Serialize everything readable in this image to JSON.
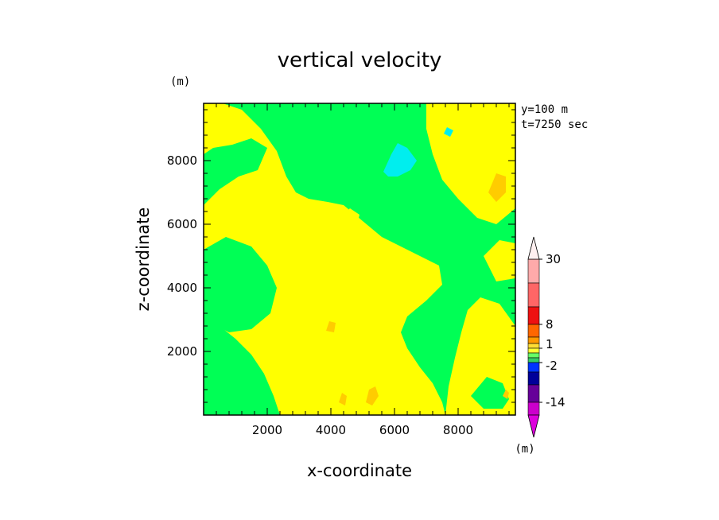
{
  "chart_data": {
    "type": "heatmap",
    "title": "vertical velocity",
    "xlabel": "x-coordinate",
    "ylabel": "z-coordinate",
    "x_unit": "(m)",
    "y_unit": "(m)",
    "info": [
      "y=100 m",
      "t=7250 sec"
    ],
    "xlim": [
      0,
      9800
    ],
    "ylim": [
      0,
      9800
    ],
    "xticks": [
      2000,
      4000,
      6000,
      8000
    ],
    "yticks": [
      2000,
      4000,
      6000,
      8000
    ],
    "xtick_labels": [
      "2000",
      "4000",
      "6000",
      "8000"
    ],
    "ytick_labels": [
      "2000",
      "4000",
      "6000",
      "8000"
    ],
    "grid": false,
    "colorbar": {
      "labels": [
        {
          "text": "30",
          "at": 30
        },
        {
          "text": "8",
          "at": 8
        },
        {
          "text": "1",
          "at": 1
        },
        {
          "text": "-2",
          "at": -2
        },
        {
          "text": "-14",
          "at": -14
        }
      ],
      "bins": [
        {
          "color": "#ffaaaa",
          "from": 22,
          "to": 30
        },
        {
          "color": "#ff6666",
          "from": 14,
          "to": 22
        },
        {
          "color": "#ee1111",
          "from": 8,
          "to": 14
        },
        {
          "color": "#ff6600",
          "from": 4,
          "to": 8
        },
        {
          "color": "#ff9900",
          "from": 2,
          "to": 4
        },
        {
          "color": "#ffdd33",
          "from": 1,
          "to": 2
        },
        {
          "color": "#ffff33",
          "from": 0,
          "to": 1
        },
        {
          "color": "#66ff66",
          "from": -1,
          "to": 0
        },
        {
          "color": "#33cc66",
          "from": -2,
          "to": -1
        },
        {
          "color": "#0033ff",
          "from": -5,
          "to": -2
        },
        {
          "color": "#000099",
          "from": -8,
          "to": -5
        },
        {
          "color": "#660099",
          "from": -14,
          "to": -8
        },
        {
          "color": "#cc00cc",
          "from": -20,
          "to": -14
        }
      ],
      "over_color": "#fff0f0",
      "under_color": "#dd00dd"
    },
    "field": {
      "background_color": "#00ff55",
      "regions": [
        {
          "level": "0 to 1",
          "color": "#ffff00",
          "points": [
            [
              0,
              9800
            ],
            [
              600,
              9800
            ],
            [
              1200,
              9600
            ],
            [
              1800,
              9000
            ],
            [
              2300,
              8300
            ],
            [
              2600,
              7500
            ],
            [
              2900,
              7000
            ],
            [
              3300,
              6800
            ],
            [
              3900,
              6700
            ],
            [
              4400,
              6600
            ],
            [
              5000,
              6100
            ],
            [
              5600,
              5600
            ],
            [
              6200,
              5300
            ],
            [
              6800,
              5000
            ],
            [
              7400,
              4700
            ],
            [
              7500,
              4100
            ],
            [
              7000,
              3600
            ],
            [
              6400,
              3100
            ],
            [
              6200,
              2600
            ],
            [
              6400,
              2100
            ],
            [
              6800,
              1500
            ],
            [
              7200,
              1000
            ],
            [
              7500,
              400
            ],
            [
              7600,
              0
            ],
            [
              2400,
              0
            ],
            [
              2200,
              600
            ],
            [
              1900,
              1300
            ],
            [
              1500,
              1900
            ],
            [
              1000,
              2400
            ],
            [
              500,
              2800
            ],
            [
              0,
              3000
            ]
          ]
        },
        {
          "level": "-1 to 0",
          "color": "#00ff55",
          "points": [
            [
              0,
              5200
            ],
            [
              700,
              5600
            ],
            [
              1500,
              5300
            ],
            [
              2000,
              4700
            ],
            [
              2300,
              4000
            ],
            [
              2100,
              3200
            ],
            [
              1500,
              2700
            ],
            [
              800,
              2600
            ],
            [
              0,
              3000
            ]
          ]
        },
        {
          "level": "-1 to 0",
          "color": "#00ff55",
          "points": [
            [
              0,
              6600
            ],
            [
              500,
              7100
            ],
            [
              1100,
              7500
            ],
            [
              1700,
              7700
            ],
            [
              2000,
              8400
            ],
            [
              1500,
              8700
            ],
            [
              900,
              8500
            ],
            [
              300,
              8400
            ],
            [
              0,
              8200
            ]
          ]
        },
        {
          "level": "0 to 1",
          "color": "#ffff00",
          "points": [
            [
              3400,
              4200
            ],
            [
              4000,
              4600
            ],
            [
              4500,
              4400
            ],
            [
              4700,
              3800
            ],
            [
              4300,
              3200
            ],
            [
              3700,
              3100
            ],
            [
              3300,
              3500
            ]
          ]
        },
        {
          "level": "0 to 1",
          "color": "#ffff00",
          "points": [
            [
              4300,
              6200
            ],
            [
              4600,
              6500
            ],
            [
              4900,
              6300
            ],
            [
              4800,
              5900
            ],
            [
              4400,
              5900
            ]
          ]
        },
        {
          "level": "-1 to 0",
          "color": "#00ff55",
          "points": [
            [
              4200,
              9800
            ],
            [
              5500,
              9800
            ],
            [
              6600,
              9700
            ],
            [
              7000,
              9100
            ],
            [
              6800,
              8400
            ],
            [
              6600,
              7800
            ],
            [
              6200,
              7400
            ],
            [
              5600,
              7200
            ],
            [
              5000,
              7400
            ],
            [
              4500,
              7800
            ],
            [
              4100,
              8500
            ],
            [
              4000,
              9200
            ]
          ]
        },
        {
          "level": "0 to 1",
          "color": "#ffff00",
          "points": [
            [
              7000,
              9800
            ],
            [
              9800,
              9800
            ],
            [
              9800,
              6500
            ],
            [
              9200,
              6000
            ],
            [
              8600,
              6200
            ],
            [
              8000,
              6800
            ],
            [
              7500,
              7400
            ],
            [
              7200,
              8200
            ],
            [
              7000,
              9000
            ]
          ]
        },
        {
          "level": "0 to 1",
          "color": "#ffff00",
          "points": [
            [
              7600,
              0
            ],
            [
              9800,
              0
            ],
            [
              9800,
              2800
            ],
            [
              9300,
              3500
            ],
            [
              8700,
              3700
            ],
            [
              8300,
              3300
            ],
            [
              8100,
              2600
            ],
            [
              7900,
              1800
            ],
            [
              7700,
              900
            ]
          ]
        },
        {
          "level": "-1 to 0",
          "color": "#00ff55",
          "points": [
            [
              8400,
              600
            ],
            [
              8900,
              1200
            ],
            [
              9400,
              1000
            ],
            [
              9600,
              500
            ],
            [
              9400,
              200
            ],
            [
              8800,
              200
            ]
          ]
        },
        {
          "level": "0 to 1",
          "color": "#ffff00",
          "points": [
            [
              8800,
              5000
            ],
            [
              9300,
              5500
            ],
            [
              9800,
              5400
            ],
            [
              9800,
              4300
            ],
            [
              9200,
              4200
            ]
          ]
        },
        {
          "level": "-1 to -2",
          "color": "#00eeee",
          "points": [
            [
              5650,
              7650
            ],
            [
              5900,
              8200
            ],
            [
              6100,
              8550
            ],
            [
              6400,
              8400
            ],
            [
              6700,
              8000
            ],
            [
              6500,
              7700
            ],
            [
              6100,
              7500
            ],
            [
              5800,
              7500
            ]
          ]
        },
        {
          "level": "-1 to -2",
          "color": "#00eeee",
          "points": [
            [
              7550,
              8850
            ],
            [
              7650,
              9050
            ],
            [
              7850,
              8950
            ],
            [
              7750,
              8750
            ]
          ]
        },
        {
          "level": "1 to 2",
          "color": "#ffcc00",
          "points": [
            [
              8950,
              7000
            ],
            [
              9200,
              7600
            ],
            [
              9500,
              7500
            ],
            [
              9500,
              7000
            ],
            [
              9200,
              6700
            ]
          ]
        },
        {
          "level": "1 to 2",
          "color": "#ffcc00",
          "points": [
            [
              5100,
              400
            ],
            [
              5200,
              800
            ],
            [
              5400,
              900
            ],
            [
              5500,
              600
            ],
            [
              5300,
              300
            ]
          ]
        },
        {
          "level": "1 to 2",
          "color": "#ffcc00",
          "points": [
            [
              3850,
              2650
            ],
            [
              3950,
              2950
            ],
            [
              4150,
              2900
            ],
            [
              4100,
              2600
            ]
          ]
        },
        {
          "level": "1 to 2",
          "color": "#ffcc00",
          "points": [
            [
              4250,
              400
            ],
            [
              4350,
              700
            ],
            [
              4500,
              600
            ],
            [
              4450,
              300
            ]
          ]
        },
        {
          "level": "1 to 2",
          "color": "#ffcc00",
          "points": [
            [
              9400,
              600
            ],
            [
              9500,
              800
            ],
            [
              9600,
              700
            ],
            [
              9550,
              500
            ]
          ]
        }
      ]
    }
  }
}
